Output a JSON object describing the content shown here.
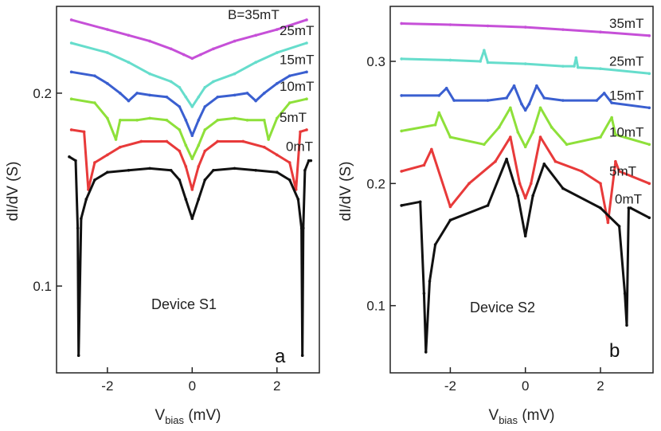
{
  "chart_data": [
    {
      "type": "line",
      "panel": "a",
      "device": "Device S1",
      "xlabel": "V",
      "xlabel_sub": "bias",
      "xlabel_unit": " (mV)",
      "ylabel": "dI/dV (S)",
      "xlim": [
        -3.2,
        3.0
      ],
      "ylim": [
        0.055,
        0.245
      ],
      "xticks": [
        -2,
        0,
        2
      ],
      "xtick_labels": [
        "-2",
        "0",
        "2"
      ],
      "yticks": [
        0.1,
        0.2
      ],
      "ytick_labels": [
        "0.1",
        "0.2"
      ],
      "series": [
        {
          "name": "B=35mT",
          "label": "B=35mT",
          "color": "#c650d8",
          "x": [
            -2.85,
            -2.0,
            -1.5,
            -1.0,
            -0.5,
            -0.2,
            0,
            0.2,
            0.5,
            1.0,
            1.5,
            2.0,
            2.7
          ],
          "y": [
            0.238,
            0.233,
            0.23,
            0.227,
            0.223,
            0.22,
            0.218,
            0.22,
            0.223,
            0.227,
            0.23,
            0.233,
            0.238
          ]
        },
        {
          "name": "25mT",
          "label": "25mT",
          "color": "#66ddcc",
          "x": [
            -2.85,
            -2.0,
            -1.5,
            -1.0,
            -0.5,
            -0.3,
            -0.15,
            0,
            0.15,
            0.3,
            0.5,
            1.0,
            1.5,
            2.0,
            2.7
          ],
          "y": [
            0.226,
            0.221,
            0.216,
            0.21,
            0.206,
            0.203,
            0.198,
            0.193,
            0.198,
            0.203,
            0.206,
            0.21,
            0.216,
            0.221,
            0.226
          ]
        },
        {
          "name": "15mT",
          "label": "15mT",
          "color": "#3a5fd0",
          "x": [
            -2.85,
            -2.3,
            -2.0,
            -1.7,
            -1.5,
            -1.3,
            -1.0,
            -0.6,
            -0.3,
            -0.15,
            0,
            0.15,
            0.3,
            0.6,
            1.0,
            1.3,
            1.5,
            1.7,
            2.0,
            2.3,
            2.7
          ],
          "y": [
            0.211,
            0.209,
            0.205,
            0.2,
            0.196,
            0.2,
            0.199,
            0.198,
            0.193,
            0.186,
            0.178,
            0.186,
            0.193,
            0.198,
            0.199,
            0.2,
            0.196,
            0.2,
            0.205,
            0.209,
            0.211
          ]
        },
        {
          "name": "10mT",
          "label": "10mT",
          "color": "#8ee03a",
          "x": [
            -2.85,
            -2.3,
            -2.0,
            -1.8,
            -1.7,
            -1.3,
            -1.0,
            -0.6,
            -0.3,
            -0.15,
            0,
            0.15,
            0.3,
            0.6,
            1.0,
            1.3,
            1.7,
            1.8,
            2.0,
            2.3,
            2.7
          ],
          "y": [
            0.197,
            0.195,
            0.187,
            0.176,
            0.186,
            0.186,
            0.187,
            0.186,
            0.181,
            0.173,
            0.166,
            0.173,
            0.181,
            0.186,
            0.187,
            0.186,
            0.186,
            0.176,
            0.187,
            0.195,
            0.197
          ]
        },
        {
          "name": "5mT",
          "label": "5mT",
          "color": "#e83a3a",
          "x": [
            -2.85,
            -2.55,
            -2.45,
            -2.3,
            -2.0,
            -1.7,
            -1.2,
            -0.6,
            -0.3,
            -0.15,
            0,
            0.15,
            0.3,
            0.6,
            1.2,
            1.7,
            2.0,
            2.3,
            2.45,
            2.55,
            2.7
          ],
          "y": [
            0.181,
            0.18,
            0.15,
            0.164,
            0.168,
            0.172,
            0.175,
            0.175,
            0.17,
            0.162,
            0.15,
            0.162,
            0.17,
            0.175,
            0.175,
            0.172,
            0.168,
            0.164,
            0.15,
            0.18,
            0.181
          ]
        },
        {
          "name": "0mT",
          "label": "0mT",
          "color": "#111111",
          "x": [
            -2.9,
            -2.75,
            -2.7,
            -2.68,
            -2.62,
            -2.5,
            -2.3,
            -2.0,
            -1.5,
            -1.0,
            -0.5,
            -0.3,
            -0.15,
            0,
            0.15,
            0.3,
            0.5,
            1.0,
            1.5,
            2.0,
            2.3,
            2.5,
            2.58,
            2.6,
            2.62,
            2.66,
            2.75,
            2.8
          ],
          "y": [
            0.167,
            0.165,
            0.13,
            0.064,
            0.135,
            0.145,
            0.155,
            0.159,
            0.16,
            0.161,
            0.16,
            0.155,
            0.145,
            0.135,
            0.145,
            0.155,
            0.16,
            0.161,
            0.16,
            0.159,
            0.155,
            0.145,
            0.13,
            0.064,
            0.13,
            0.16,
            0.165,
            0.165
          ]
        }
      ]
    },
    {
      "type": "line",
      "panel": "b",
      "device": "Device S2",
      "xlabel": "V",
      "xlabel_sub": "bias",
      "xlabel_unit": " (mV)",
      "ylabel": "dI/dV (S)",
      "xlim": [
        -3.6,
        3.4
      ],
      "ylim": [
        0.045,
        0.345
      ],
      "xticks": [
        -2,
        0,
        2
      ],
      "xtick_labels": [
        "-2",
        "0",
        "2"
      ],
      "yticks": [
        0.1,
        0.2,
        0.3
      ],
      "ytick_labels": [
        "0.1",
        "0.2",
        "0.3"
      ],
      "series": [
        {
          "name": "35mT",
          "label": "35mT",
          "color": "#c650d8",
          "x": [
            -3.3,
            -2.0,
            -1.0,
            0,
            1.0,
            2.0,
            3.3
          ],
          "y": [
            0.331,
            0.33,
            0.329,
            0.328,
            0.326,
            0.324,
            0.321
          ]
        },
        {
          "name": "25mT",
          "label": "25mT",
          "color": "#66ddcc",
          "x": [
            -3.3,
            -2.0,
            -1.2,
            -1.1,
            -1.0,
            0,
            1.0,
            1.3,
            1.35,
            1.4,
            2.0,
            3.3
          ],
          "y": [
            0.302,
            0.301,
            0.3,
            0.309,
            0.299,
            0.298,
            0.296,
            0.296,
            0.303,
            0.295,
            0.294,
            0.29
          ]
        },
        {
          "name": "15mT",
          "label": "15mT",
          "color": "#3a5fd0",
          "x": [
            -3.3,
            -2.3,
            -2.1,
            -1.9,
            -1.0,
            -0.5,
            -0.3,
            -0.1,
            0,
            0.1,
            0.3,
            0.5,
            1.0,
            1.9,
            2.1,
            2.3,
            3.3
          ],
          "y": [
            0.272,
            0.272,
            0.278,
            0.268,
            0.268,
            0.27,
            0.28,
            0.265,
            0.26,
            0.265,
            0.28,
            0.27,
            0.268,
            0.268,
            0.274,
            0.266,
            0.262
          ]
        },
        {
          "name": "10mT",
          "label": "10mT",
          "color": "#8ee03a",
          "x": [
            -3.3,
            -2.4,
            -2.3,
            -2.0,
            -1.1,
            -0.7,
            -0.4,
            -0.2,
            0,
            0.2,
            0.4,
            0.7,
            1.1,
            2.0,
            2.3,
            2.4,
            3.3
          ],
          "y": [
            0.243,
            0.248,
            0.258,
            0.238,
            0.232,
            0.246,
            0.262,
            0.242,
            0.23,
            0.242,
            0.262,
            0.246,
            0.232,
            0.238,
            0.254,
            0.24,
            0.232
          ]
        },
        {
          "name": "5mT",
          "label": "5mT",
          "color": "#e83a3a",
          "x": [
            -3.3,
            -2.7,
            -2.5,
            -2.0,
            -1.5,
            -0.8,
            -0.4,
            -0.15,
            0,
            0.15,
            0.4,
            0.8,
            1.5,
            2.0,
            2.2,
            2.4,
            2.5,
            3.3
          ],
          "y": [
            0.21,
            0.215,
            0.228,
            0.181,
            0.2,
            0.218,
            0.238,
            0.2,
            0.188,
            0.2,
            0.238,
            0.218,
            0.21,
            0.2,
            0.168,
            0.218,
            0.21,
            0.2
          ]
        },
        {
          "name": "0mT",
          "label": "0mT",
          "color": "#111111",
          "x": [
            -3.3,
            -2.8,
            -2.7,
            -2.65,
            -2.55,
            -2.4,
            -2.0,
            -1.0,
            -0.5,
            -0.2,
            0,
            0.2,
            0.5,
            1.0,
            2.0,
            2.5,
            2.65,
            2.7,
            2.75,
            2.8,
            3.3
          ],
          "y": [
            0.182,
            0.185,
            0.11,
            0.062,
            0.12,
            0.15,
            0.17,
            0.182,
            0.22,
            0.19,
            0.157,
            0.19,
            0.216,
            0.196,
            0.18,
            0.165,
            0.11,
            0.084,
            0.18,
            0.18,
            0.172
          ]
        }
      ]
    }
  ]
}
